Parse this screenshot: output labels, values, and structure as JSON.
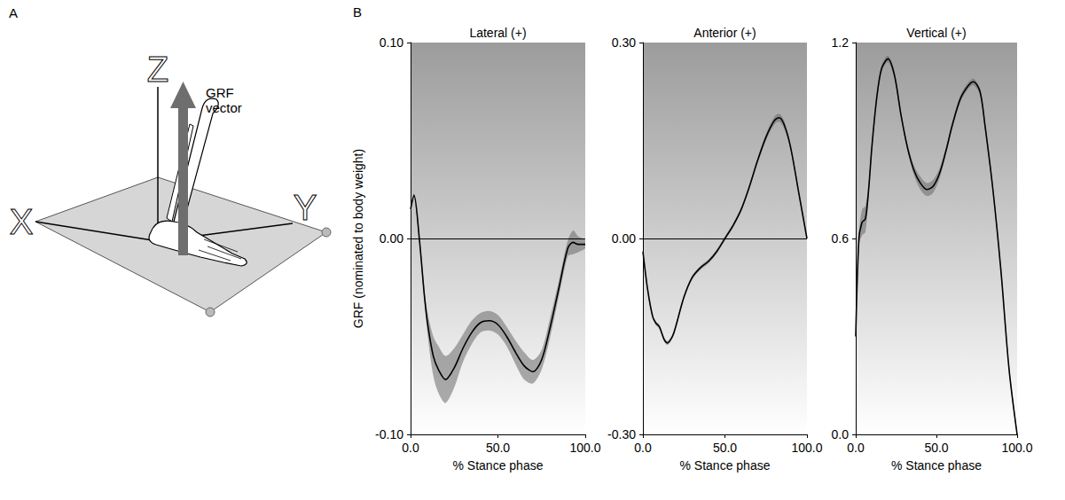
{
  "panels": [
    {
      "label": "A",
      "diagram": {
        "axes": {
          "x": "X",
          "y": "Y",
          "z": "Z"
        },
        "arrow_label": "GRF vector"
      }
    },
    {
      "label": "B"
    }
  ],
  "chart_data": [
    {
      "type": "line",
      "title": "Lateral (+)",
      "xlabel": "% Stance phase",
      "ylabel": "GRF (nominated to body weight)",
      "x": [
        0,
        2,
        5,
        8,
        10,
        13,
        16,
        20,
        25,
        30,
        35,
        40,
        45,
        50,
        55,
        60,
        65,
        70,
        75,
        80,
        85,
        90,
        93,
        96,
        100
      ],
      "values": [
        0.015,
        0.022,
        0.0,
        -0.03,
        -0.045,
        -0.06,
        -0.067,
        -0.072,
        -0.066,
        -0.056,
        -0.048,
        -0.043,
        -0.042,
        -0.044,
        -0.05,
        -0.058,
        -0.065,
        -0.068,
        -0.062,
        -0.045,
        -0.025,
        -0.005,
        -0.002,
        -0.003,
        -0.003
      ],
      "sd": [
        0.001,
        0.001,
        0.002,
        0.003,
        0.006,
        0.01,
        0.012,
        0.012,
        0.01,
        0.007,
        0.006,
        0.005,
        0.005,
        0.005,
        0.005,
        0.006,
        0.007,
        0.006,
        0.005,
        0.005,
        0.004,
        0.004,
        0.006,
        0.004,
        0.002
      ],
      "color": "#000000",
      "xlim": [
        0,
        100
      ],
      "xticks": [
        {
          "value": 0,
          "label": "0.0"
        },
        {
          "value": 50,
          "label": "50.0"
        },
        {
          "value": 100,
          "label": "100.0"
        }
      ],
      "ylim": [
        -0.1,
        0.1
      ],
      "yticks": [
        {
          "value": -0.1,
          "label": "-0.10"
        },
        {
          "value": 0,
          "label": "0.00"
        },
        {
          "value": 0.1,
          "label": "0.10"
        }
      ],
      "grid": false
    },
    {
      "type": "line",
      "title": "Anterior (+)",
      "xlabel": "% Stance phase",
      "x": [
        0,
        3,
        6,
        8,
        10,
        13,
        15,
        18,
        20,
        25,
        30,
        35,
        40,
        45,
        50,
        55,
        60,
        65,
        70,
        75,
        80,
        83,
        86,
        90,
        95,
        100
      ],
      "values": [
        -0.02,
        -0.08,
        -0.12,
        -0.13,
        -0.135,
        -0.155,
        -0.16,
        -0.15,
        -0.135,
        -0.09,
        -0.06,
        -0.045,
        -0.035,
        -0.02,
        0.0,
        0.02,
        0.045,
        0.08,
        0.12,
        0.155,
        0.18,
        0.185,
        0.175,
        0.14,
        0.07,
        0.0
      ],
      "sd": [
        0.002,
        0.003,
        0.003,
        0.003,
        0.003,
        0.003,
        0.003,
        0.003,
        0.003,
        0.003,
        0.003,
        0.003,
        0.003,
        0.003,
        0.003,
        0.003,
        0.003,
        0.003,
        0.004,
        0.005,
        0.006,
        0.006,
        0.006,
        0.004,
        0.003,
        0.002
      ],
      "color": "#000000",
      "xlim": [
        0,
        100
      ],
      "xticks": [
        {
          "value": 0,
          "label": "0.0"
        },
        {
          "value": 50,
          "label": "50.0"
        },
        {
          "value": 100,
          "label": "100.0"
        }
      ],
      "ylim": [
        -0.3,
        0.3
      ],
      "yticks": [
        {
          "value": -0.3,
          "label": "-0.30"
        },
        {
          "value": 0,
          "label": "0.00"
        },
        {
          "value": 0.3,
          "label": "0.30"
        }
      ],
      "grid": false
    },
    {
      "type": "line",
      "title": "Vertical (+)",
      "xlabel": "% Stance phase",
      "x": [
        0,
        2,
        4,
        6,
        8,
        10,
        13,
        16,
        20,
        24,
        28,
        32,
        36,
        40,
        44,
        48,
        52,
        56,
        60,
        65,
        70,
        73,
        77,
        80,
        85,
        90,
        95,
        100
      ],
      "values": [
        0.3,
        0.6,
        0.65,
        0.66,
        0.75,
        0.88,
        1.03,
        1.12,
        1.15,
        1.1,
        0.98,
        0.88,
        0.81,
        0.77,
        0.75,
        0.76,
        0.8,
        0.87,
        0.95,
        1.03,
        1.07,
        1.08,
        1.05,
        0.95,
        0.75,
        0.5,
        0.2,
        0.0
      ],
      "sd": [
        0.01,
        0.02,
        0.04,
        0.04,
        0.02,
        0.01,
        0.01,
        0.01,
        0.01,
        0.01,
        0.01,
        0.01,
        0.015,
        0.02,
        0.02,
        0.02,
        0.015,
        0.01,
        0.01,
        0.01,
        0.01,
        0.01,
        0.01,
        0.01,
        0.01,
        0.01,
        0.01,
        0.005
      ],
      "color": "#000000",
      "xlim": [
        0,
        100
      ],
      "xticks": [
        {
          "value": 0,
          "label": "0.0"
        },
        {
          "value": 50,
          "label": "50.0"
        },
        {
          "value": 100,
          "label": "100.0"
        }
      ],
      "ylim": [
        0,
        1.2
      ],
      "yticks": [
        {
          "value": 0,
          "label": "0.0"
        },
        0.6,
        1.2
      ],
      "grid": false
    }
  ]
}
